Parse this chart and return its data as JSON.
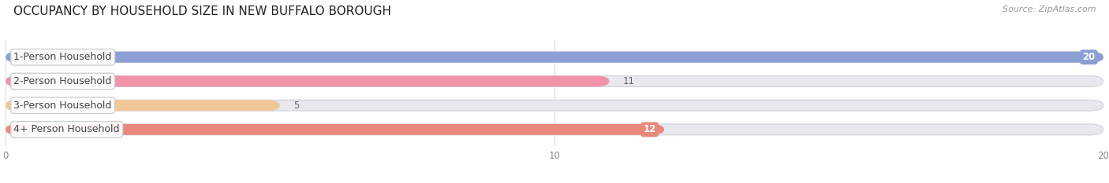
{
  "title": "OCCUPANCY BY HOUSEHOLD SIZE IN NEW BUFFALO BOROUGH",
  "source": "Source: ZipAtlas.com",
  "categories": [
    "1-Person Household",
    "2-Person Household",
    "3-Person Household",
    "4+ Person Household"
  ],
  "values": [
    20,
    11,
    5,
    12
  ],
  "bar_colors": [
    "#8b9fd4",
    "#f093a8",
    "#f0c898",
    "#e8897c"
  ],
  "bar_bg_color": "#e8e8ee",
  "value_bg_colors": [
    "#8b9fd4",
    "#e8e8ee",
    "#e8e8ee",
    "#e8897c"
  ],
  "value_text_colors": [
    "#ffffff",
    "#888888",
    "#888888",
    "#ffffff"
  ],
  "xlim": [
    0,
    20
  ],
  "xticks": [
    0,
    10,
    20
  ],
  "title_fontsize": 11,
  "label_fontsize": 9,
  "value_fontsize": 8.5,
  "source_fontsize": 8,
  "background_color": "#ffffff",
  "bar_height": 0.45,
  "figsize": [
    14.06,
    2.33
  ],
  "dpi": 100
}
